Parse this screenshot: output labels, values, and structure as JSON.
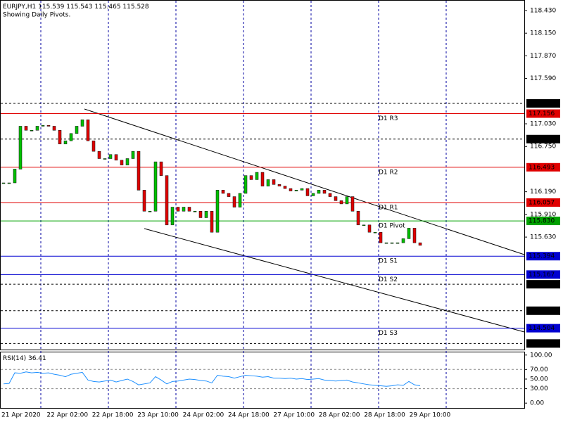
{
  "chart_data": {
    "type": "candlestick",
    "symbol": "EURJPY,H1",
    "ohlc": [
      115.539,
      115.543,
      115.465,
      115.528
    ],
    "subtitle": "Showing Daily Pivots.",
    "ylim": [
      114.24,
      118.56
    ],
    "yticks": [
      {
        "value": 118.43,
        "label": "118.430"
      },
      {
        "value": 118.15,
        "label": "118.150"
      },
      {
        "value": 117.87,
        "label": "117.870"
      },
      {
        "value": 117.59,
        "label": "117.590"
      },
      {
        "value": 117.03,
        "label": "117.030"
      },
      {
        "value": 116.75,
        "label": "116.750"
      },
      {
        "value": 116.19,
        "label": "116.190"
      },
      {
        "value": 115.91,
        "label": "115.910"
      },
      {
        "value": 115.63,
        "label": "115.630"
      }
    ],
    "up_color": "#00c000",
    "down_color": "#e00000",
    "closes": [
      116.3,
      116.3,
      116.47,
      117.0,
      116.95,
      116.95,
      117.0,
      117.01,
      117.0,
      116.95,
      116.78,
      116.82,
      116.91,
      117.0,
      117.08,
      116.82,
      116.69,
      116.6,
      116.6,
      116.65,
      116.58,
      116.52,
      116.6,
      116.69,
      116.21,
      115.95,
      115.95,
      116.56,
      116.39,
      115.78,
      116.0,
      115.95,
      116.0,
      115.95,
      115.95,
      115.87,
      115.95,
      115.69,
      116.21,
      116.17,
      116.13,
      116.0,
      116.17,
      116.39,
      116.34,
      116.43,
      116.26,
      116.34,
      116.28,
      116.26,
      116.23,
      116.2,
      116.21,
      116.23,
      116.14,
      116.17,
      116.21,
      116.17,
      116.13,
      116.08,
      116.04,
      116.13,
      115.95,
      115.78,
      115.78,
      115.69,
      115.69,
      115.56,
      115.56,
      115.56,
      115.56,
      115.61,
      115.74,
      115.56,
      115.528
    ],
    "levels": [
      {
        "value": 117.282,
        "color": "#000000",
        "dashed": true
      },
      {
        "name": "D1 R3",
        "value": 117.156,
        "color": "#e00000"
      },
      {
        "value": 116.841,
        "color": "#000000",
        "dashed": true
      },
      {
        "name": "D1 R2",
        "value": 116.493,
        "color": "#e00000"
      },
      {
        "name": "D1 R1",
        "value": 116.057,
        "color": "#e00000"
      },
      {
        "name": "D1 Pivot",
        "value": 115.83,
        "value_label": "115.830",
        "color": "#00a000"
      },
      {
        "name": "D1 S1",
        "value": 115.394,
        "color": "#0000d0"
      },
      {
        "name": "D1 S2",
        "value": 115.167,
        "color": "#0000d0"
      },
      {
        "value": 115.047,
        "color": "#000000",
        "dashed": true
      },
      {
        "value": 114.72,
        "value_label": "114.720",
        "color": "#000000",
        "dashed": true
      },
      {
        "name": "D1 S3",
        "value": 114.504,
        "color": "#0000d0"
      },
      {
        "value": 114.315,
        "color": "#000000",
        "dashed": true
      }
    ],
    "time_labels": [
      "21 Apr 2020",
      "22 Apr 02:00",
      "22 Apr 18:00",
      "23 Apr 10:00",
      "24 Apr 02:00",
      "24 Apr 18:00",
      "27 Apr 10:00",
      "28 Apr 02:00",
      "28 Apr 18:00",
      "29 Apr 10:00"
    ],
    "rsi": {
      "name": "RSI(14)",
      "current": 36.41,
      "color": "#1e90ff",
      "ylim": [
        -10,
        107
      ],
      "yticks": [
        {
          "value": 100,
          "label": "100.00"
        },
        {
          "value": 70,
          "label": "70.00"
        },
        {
          "value": 50,
          "label": "50.00"
        },
        {
          "value": 30,
          "label": "30.00"
        },
        {
          "value": 0,
          "label": "0.00"
        }
      ],
      "levels": [
        70,
        30
      ],
      "values": [
        40,
        41,
        63,
        62,
        65,
        63,
        64,
        62,
        63,
        60,
        58,
        55,
        60,
        62,
        64,
        48,
        45,
        44,
        46,
        48,
        44,
        47,
        50,
        45,
        38,
        40,
        42,
        55,
        48,
        40,
        45,
        46,
        48,
        50,
        49,
        47,
        46,
        42,
        58,
        56,
        55,
        52,
        55,
        58,
        57,
        56,
        54,
        55,
        52,
        52,
        51,
        52,
        50,
        51,
        49,
        50,
        51,
        48,
        47,
        46,
        47,
        48,
        44,
        42,
        40,
        38,
        37,
        36,
        35,
        36,
        38,
        37,
        45,
        38,
        36
      ]
    }
  }
}
